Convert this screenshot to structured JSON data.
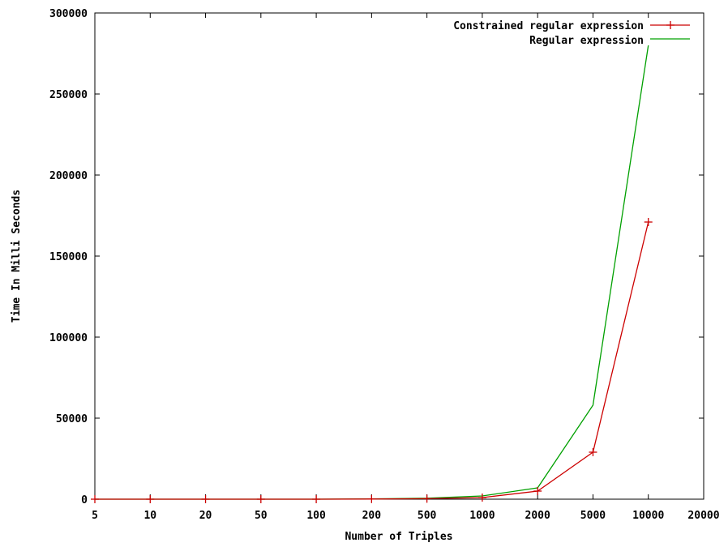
{
  "chart_data": {
    "type": "line",
    "title": "",
    "xlabel": "Number of Triples",
    "ylabel": "Time In Milli Seconds",
    "categories": [
      "5",
      "10",
      "20",
      "50",
      "100",
      "200",
      "500",
      "1000",
      "2000",
      "5000",
      "10000",
      "20000"
    ],
    "yticks": [
      "0",
      "50000",
      "100000",
      "150000",
      "200000",
      "250000",
      "300000"
    ],
    "ylim": [
      0,
      300000
    ],
    "grid": false,
    "legend_position": "top-right",
    "series": [
      {
        "name": "Constrained regular expression",
        "color": "#cc0000",
        "marker": "plus",
        "values": [
          0,
          0,
          0,
          0,
          0,
          100,
          300,
          1000,
          5000,
          29000,
          171000,
          null
        ]
      },
      {
        "name": "Regular expression",
        "color": "#00a000",
        "marker": "none",
        "values": [
          0,
          0,
          0,
          0,
          0,
          150,
          600,
          2000,
          7000,
          58000,
          280000,
          null
        ]
      }
    ]
  }
}
